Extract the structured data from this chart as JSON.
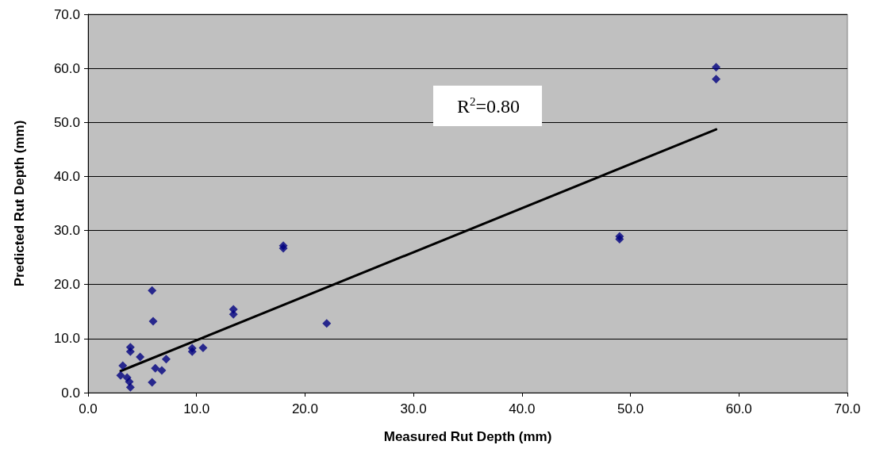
{
  "chart_data": {
    "type": "scatter",
    "xlabel": "Measured Rut Depth (mm)",
    "ylabel": "Predicted Rut Depth (mm)",
    "xlim": [
      0,
      70
    ],
    "xticks": [
      {
        "value": 0,
        "label": "0.0"
      },
      {
        "value": 10,
        "label": "10.0"
      },
      {
        "value": 20,
        "label": "20.0"
      },
      {
        "value": 30,
        "label": "30.0"
      },
      {
        "value": 40,
        "label": "40.0"
      },
      {
        "value": 50,
        "label": "50.0"
      },
      {
        "value": 60,
        "label": "60.0"
      },
      {
        "value": 70,
        "label": "70.0"
      }
    ],
    "ylim": [
      0,
      70
    ],
    "yticks": [
      {
        "value": 0,
        "label": "0.0"
      },
      {
        "value": 10,
        "label": "10.0"
      },
      {
        "value": 20,
        "label": "20.0"
      },
      {
        "value": 30,
        "label": "30.0"
      },
      {
        "value": 40,
        "label": "40.0"
      },
      {
        "value": 50,
        "label": "50.0"
      },
      {
        "value": 60,
        "label": "60.0"
      },
      {
        "value": 70,
        "label": "70.0"
      }
    ],
    "grid": "y",
    "annotations": [
      "R$^{2}$=0.80"
    ],
    "series": [
      {
        "marker": "diamond",
        "color": "#000080",
        "x": [
          3.0,
          3.2,
          3.6,
          3.8,
          3.9,
          3.9,
          3.9,
          4.8,
          5.9,
          5.9,
          6.0,
          6.2,
          6.8,
          7.2,
          9.6,
          9.6,
          10.6,
          13.4,
          13.4,
          18.0,
          18.0,
          22.0,
          49.0,
          49.0,
          57.9,
          57.9
        ],
        "values": [
          3.2,
          5.0,
          2.8,
          2.0,
          1.0,
          8.4,
          7.6,
          6.6,
          1.9,
          18.9,
          13.2,
          4.5,
          4.1,
          6.2,
          7.6,
          8.2,
          8.3,
          15.4,
          14.5,
          27.2,
          26.7,
          12.8,
          28.9,
          28.4,
          60.2,
          58.0
        ]
      },
      {
        "type": "line",
        "marker": "none",
        "color": "#000000",
        "line_style": "solid",
        "x": [
          3.0,
          57.9
        ],
        "values": [
          4.0,
          48.7
        ]
      }
    ]
  }
}
